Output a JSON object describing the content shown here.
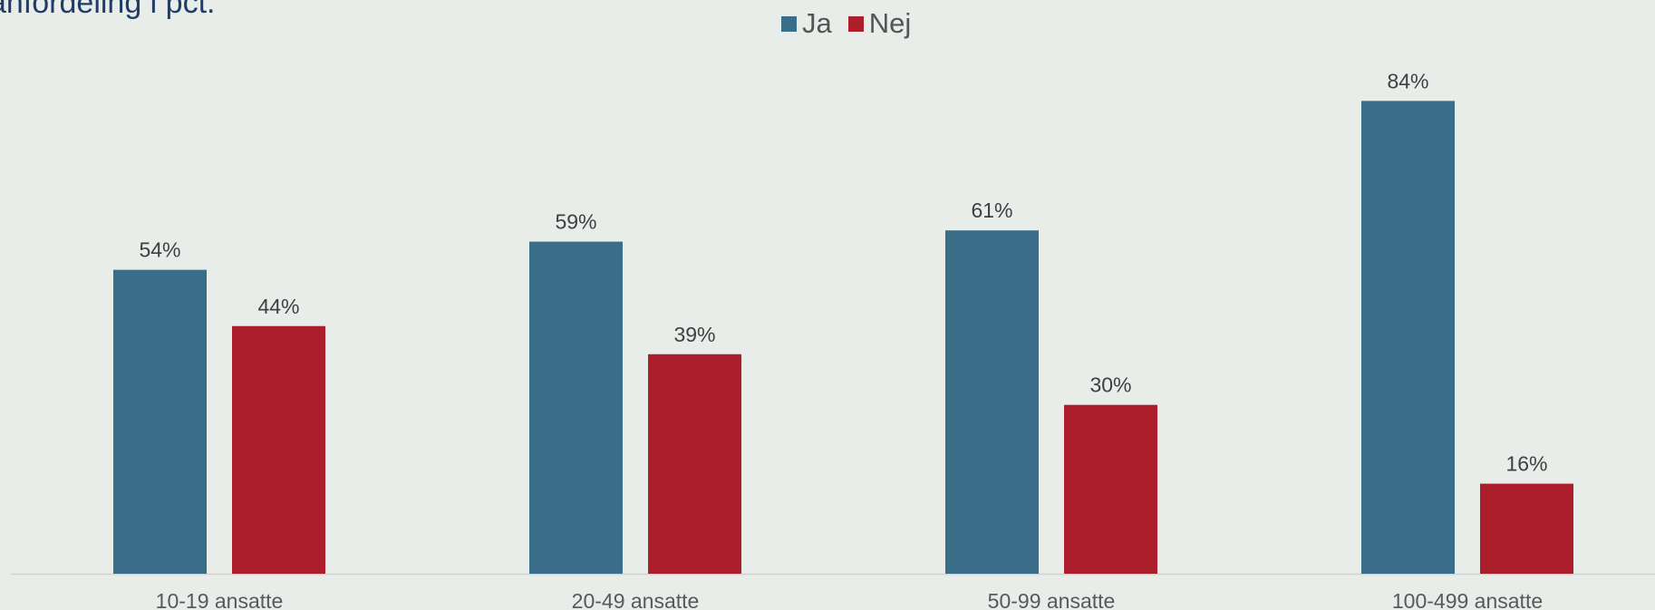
{
  "title": "anfordeling i pct.",
  "chart_data": {
    "type": "bar",
    "categories": [
      "10-19 ansatte",
      "20-49 ansatte",
      "50-99 ansatte",
      "100-499 ansatte"
    ],
    "series": [
      {
        "name": "Ja",
        "values": [
          54,
          59,
          61,
          84
        ],
        "labels": [
          "54%",
          "59%",
          "61%",
          "84%"
        ],
        "color": "#3a6d87"
      },
      {
        "name": "Nej",
        "values": [
          44,
          39,
          30,
          16
        ],
        "labels": [
          "44%",
          "39%",
          "30%",
          "16%"
        ],
        "color": "#ad1e2d"
      }
    ],
    "ylim": [
      0,
      100
    ],
    "grid": false,
    "legend": "top-center"
  }
}
